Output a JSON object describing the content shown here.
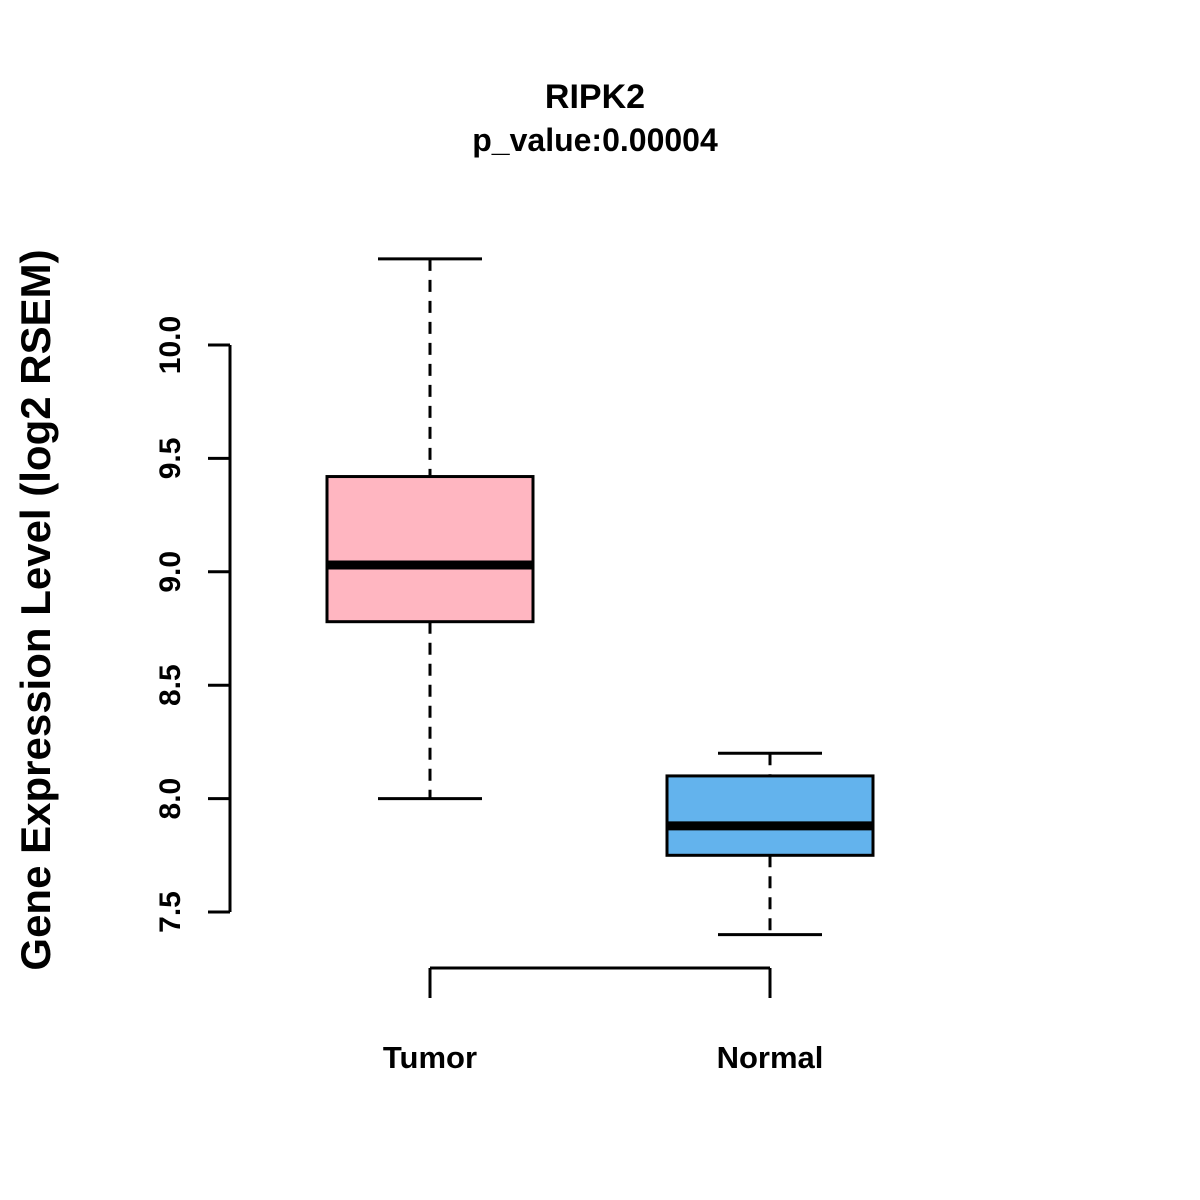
{
  "title": "RIPK2",
  "subtitle": "p_value:0.00004",
  "ylabel": "Gene Expression Level (log2 RSEM)",
  "chart_data": {
    "type": "boxplot",
    "title": "RIPK2",
    "subtitle": "p_value:0.00004",
    "ylabel": "Gene Expression Level (log2 RSEM)",
    "xlabel": "",
    "categories": [
      "Tumor",
      "Normal"
    ],
    "series": [
      {
        "name": "Tumor",
        "color": "#FFB6C1",
        "min": 8.0,
        "q1": 8.78,
        "median": 9.03,
        "q3": 9.42,
        "max": 10.38
      },
      {
        "name": "Normal",
        "color": "#63B3ED",
        "min": 7.4,
        "q1": 7.75,
        "median": 7.88,
        "q3": 8.1,
        "max": 8.2
      }
    ],
    "yticks": [
      7.5,
      8.0,
      8.5,
      9.0,
      9.5,
      10.0
    ],
    "ylim": [
      7.5,
      10.0
    ],
    "grid": false,
    "legend": "none",
    "axis_color": "#000000"
  }
}
